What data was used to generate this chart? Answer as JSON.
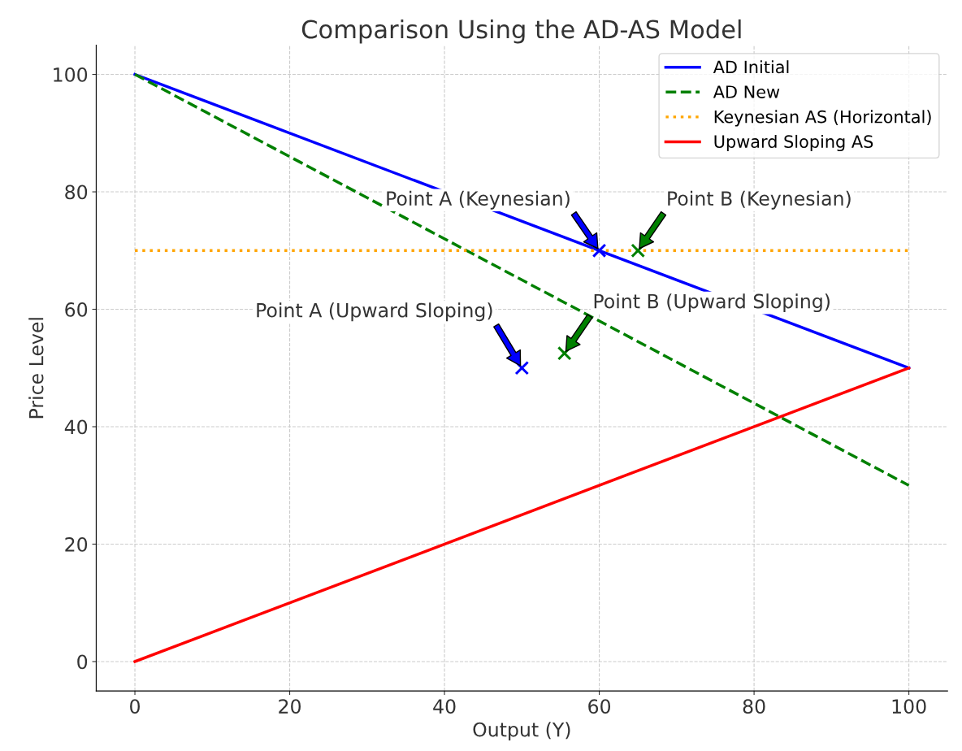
{
  "chart_data": {
    "type": "line",
    "title": "Comparison Using the AD-AS Model",
    "xlabel": "Output (Y)",
    "ylabel": "Price Level",
    "xlim": [
      -5,
      105
    ],
    "ylim": [
      -5,
      105
    ],
    "xticks": [
      0,
      20,
      40,
      60,
      80,
      100
    ],
    "yticks": [
      0,
      20,
      40,
      60,
      80,
      100
    ],
    "grid": true,
    "legend": "top right",
    "series": [
      {
        "name": "AD Initial",
        "color": "#0000ff",
        "x": [
          0,
          100
        ],
        "values": [
          100,
          50
        ],
        "line_style": "solid"
      },
      {
        "name": "AD New",
        "color": "#008000",
        "x": [
          0,
          100
        ],
        "values": [
          100,
          30
        ],
        "line_style": "dashed"
      },
      {
        "name": "Keynesian AS (Horizontal)",
        "color": "#ffa500",
        "x": [
          0,
          100
        ],
        "values": [
          70,
          70
        ],
        "line_style": "dotted"
      },
      {
        "name": "Upward Sloping AS",
        "color": "#ff0000",
        "x": [
          0,
          100
        ],
        "values": [
          0,
          50
        ],
        "line_style": "solid"
      },
      {
        "type": "scatter",
        "color": "#0000ff",
        "marker": "cross",
        "x": [
          60,
          50
        ],
        "values": [
          70,
          50
        ]
      },
      {
        "type": "scatter",
        "color": "#008000",
        "marker": "cross",
        "x": [
          65,
          55.5
        ],
        "values": [
          70,
          52.5
        ]
      }
    ],
    "annotations": [
      {
        "text": "Point A (Keynesian)",
        "x": 60,
        "y": 70
      },
      {
        "text": "Point B (Keynesian)",
        "x": 65,
        "y": 70
      },
      {
        "text": "Point A (Upward Sloping)",
        "x": 50,
        "y": 50
      },
      {
        "text": "Point B (Upward Sloping)",
        "x": 55.5,
        "y": 52.5
      }
    ]
  }
}
